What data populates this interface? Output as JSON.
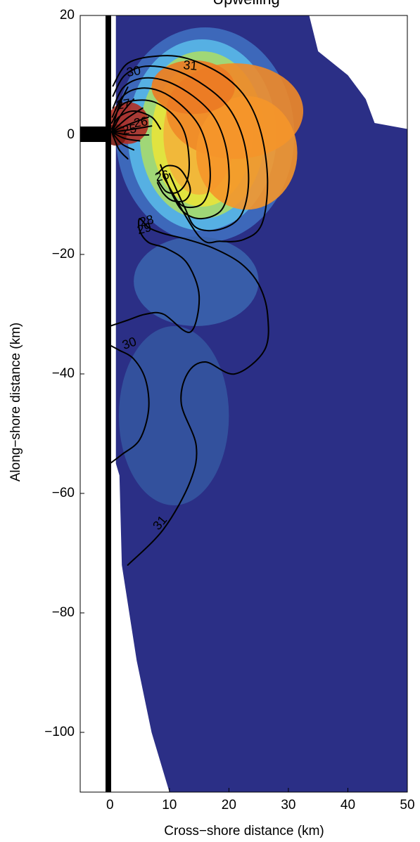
{
  "chart_data": {
    "type": "heatmap",
    "title": "Upwelling",
    "xlabel": "Cross−shore distance (km)",
    "ylabel": "Along−shore distance (km)",
    "xlim": [
      -5,
      50
    ],
    "ylim": [
      -110,
      20
    ],
    "xticks": [
      0,
      10,
      20,
      30,
      40,
      50
    ],
    "yticks": [
      -100,
      -80,
      -60,
      -40,
      -20,
      0,
      20
    ],
    "xtick_labels": [
      "0",
      "10",
      "20",
      "30",
      "40",
      "50"
    ],
    "ytick_labels": [
      "−100",
      "−80",
      "−60",
      "−40",
      "−20",
      "0",
      "20"
    ],
    "colormap": "jet",
    "background_color": "#2b2f86",
    "coastline_x": 0,
    "contour_labels": [
      {
        "text": "31",
        "x": 8.5,
        "y": -65,
        "rotation": -50
      },
      {
        "text": "30",
        "x": 4,
        "y": 10.5,
        "rotation": -10
      },
      {
        "text": "31",
        "x": 13.5,
        "y": 11.5,
        "rotation": 5
      },
      {
        "text": "27",
        "x": 2.3,
        "y": 5,
        "rotation": -10
      },
      {
        "text": "26",
        "x": 5.2,
        "y": 2,
        "rotation": -10
      },
      {
        "text": "25",
        "x": 3.3,
        "y": 0.8,
        "rotation": -10
      },
      {
        "text": "26",
        "x": 8.8,
        "y": -7,
        "rotation": -15
      },
      {
        "text": "28",
        "x": 6.2,
        "y": -14.5,
        "rotation": -15
      },
      {
        "text": "29",
        "x": 5.8,
        "y": -15.8,
        "rotation": -15
      },
      {
        "text": "30",
        "x": 3.3,
        "y": -35,
        "rotation": -20
      }
    ],
    "contours": [
      {
        "level": 31,
        "points": [
          [
            0.5,
            8.2
          ],
          [
            3,
            12
          ],
          [
            8,
            13.2
          ],
          [
            13,
            12.8
          ],
          [
            19,
            10
          ],
          [
            23,
            6
          ],
          [
            25.5,
            0
          ],
          [
            26.5,
            -8
          ],
          [
            25.5,
            -15
          ],
          [
            22.5,
            -17.5
          ],
          [
            18.5,
            -17.8
          ],
          [
            15,
            -17
          ],
          [
            9,
            -7
          ]
        ]
      },
      {
        "level": 30,
        "points": [
          [
            0.5,
            6.5
          ],
          [
            2.5,
            10
          ],
          [
            6,
            11.5
          ],
          [
            11,
            10.8
          ],
          [
            16,
            8.2
          ],
          [
            20,
            4.5
          ],
          [
            22.5,
            -1
          ],
          [
            23.3,
            -8
          ],
          [
            22,
            -13.5
          ],
          [
            18.5,
            -15.8
          ],
          [
            14.5,
            -15.5
          ],
          [
            12.5,
            -12
          ],
          [
            10,
            -6.5
          ]
        ]
      },
      {
        "level": 29,
        "points": [
          [
            0.5,
            4.5
          ],
          [
            2.3,
            8
          ],
          [
            5.5,
            9.5
          ],
          [
            9.5,
            9
          ],
          [
            14,
            6.5
          ],
          [
            17.5,
            3
          ],
          [
            19.5,
            -2
          ],
          [
            20,
            -8
          ],
          [
            18.8,
            -12.5
          ],
          [
            15.5,
            -14
          ],
          [
            12.5,
            -13
          ],
          [
            10.5,
            -10
          ],
          [
            8.5,
            -5
          ]
        ]
      },
      {
        "level": 28,
        "points": [
          [
            0.4,
            3
          ],
          [
            2.2,
            6.5
          ],
          [
            5,
            7.8
          ],
          [
            8.5,
            7.3
          ],
          [
            12,
            5
          ],
          [
            15,
            1.5
          ],
          [
            16.5,
            -3
          ],
          [
            16.8,
            -8
          ],
          [
            15.5,
            -11.5
          ],
          [
            12.5,
            -12
          ],
          [
            10.5,
            -10
          ]
        ]
      },
      {
        "level": 27,
        "points": [
          [
            0.3,
            2
          ],
          [
            2,
            5
          ],
          [
            4.5,
            5.8
          ],
          [
            7.5,
            5.5
          ],
          [
            10.5,
            3.5
          ],
          [
            12.5,
            0.5
          ],
          [
            13.3,
            -4
          ],
          [
            13,
            -7.5
          ],
          [
            11.5,
            -9.5
          ],
          [
            9.5,
            -9.5
          ],
          [
            8,
            -7.5
          ]
        ]
      },
      {
        "level": 26,
        "points": [
          [
            8,
            -6.5
          ],
          [
            9.5,
            -5.2
          ],
          [
            11.5,
            -5.5
          ],
          [
            13,
            -7.5
          ],
          [
            13.5,
            -9.5
          ],
          [
            12.5,
            -11
          ],
          [
            10.5,
            -11
          ],
          [
            9,
            -9.8
          ],
          [
            8,
            -8
          ]
        ]
      },
      {
        "level": 25,
        "points": [
          [
            0.3,
            1
          ],
          [
            1.5,
            3
          ],
          [
            4,
            4
          ],
          [
            7,
            3
          ],
          [
            8.5,
            1
          ]
        ]
      },
      {
        "level": 30,
        "points": [
          [
            0,
            -32
          ],
          [
            3,
            -31
          ],
          [
            6,
            -30
          ],
          [
            9,
            -30
          ],
          [
            13.5,
            -33
          ],
          [
            15,
            -27
          ],
          [
            13,
            -21.5
          ],
          [
            9.5,
            -19
          ],
          [
            6.5,
            -18
          ],
          [
            5,
            -16
          ],
          [
            5,
            -14
          ],
          [
            6.5,
            -15.5
          ],
          [
            9,
            -16.5
          ],
          [
            13,
            -17.5
          ],
          [
            17.5,
            -19
          ],
          [
            22,
            -21.5
          ],
          [
            25,
            -25
          ],
          [
            26.5,
            -30
          ],
          [
            26,
            -36
          ],
          [
            21,
            -40
          ],
          [
            16,
            -38
          ],
          [
            13,
            -40
          ],
          [
            12,
            -45
          ],
          [
            14.5,
            -52
          ],
          [
            13.5,
            -58
          ],
          [
            9,
            -66
          ],
          [
            3,
            -72
          ]
        ]
      },
      {
        "level": 31,
        "points": [
          [
            0,
            -55
          ],
          [
            2,
            -53.5
          ],
          [
            5,
            -51
          ],
          [
            6.5,
            -46
          ],
          [
            6,
            -41
          ],
          [
            4,
            -37.5
          ],
          [
            1.5,
            -36
          ],
          [
            0,
            -35.2
          ]
        ]
      }
    ],
    "hotspots": [
      {
        "x": 21,
        "y": 4,
        "rx": 11.5,
        "ry": 8,
        "color": "#f08a28"
      },
      {
        "x": 23,
        "y": -3,
        "rx": 8.5,
        "ry": 9.5,
        "color": "#f5962a"
      },
      {
        "x": 14,
        "y": 8,
        "rx": 7,
        "ry": 4.5,
        "color": "#eb7a24"
      },
      {
        "x": 3,
        "y": 2,
        "rx": 3.5,
        "ry": 3.5,
        "color": "#b22f22"
      },
      {
        "x": 1,
        "y": 0,
        "rx": 1.8,
        "ry": 1.8,
        "color": "#7a1a12"
      }
    ]
  }
}
